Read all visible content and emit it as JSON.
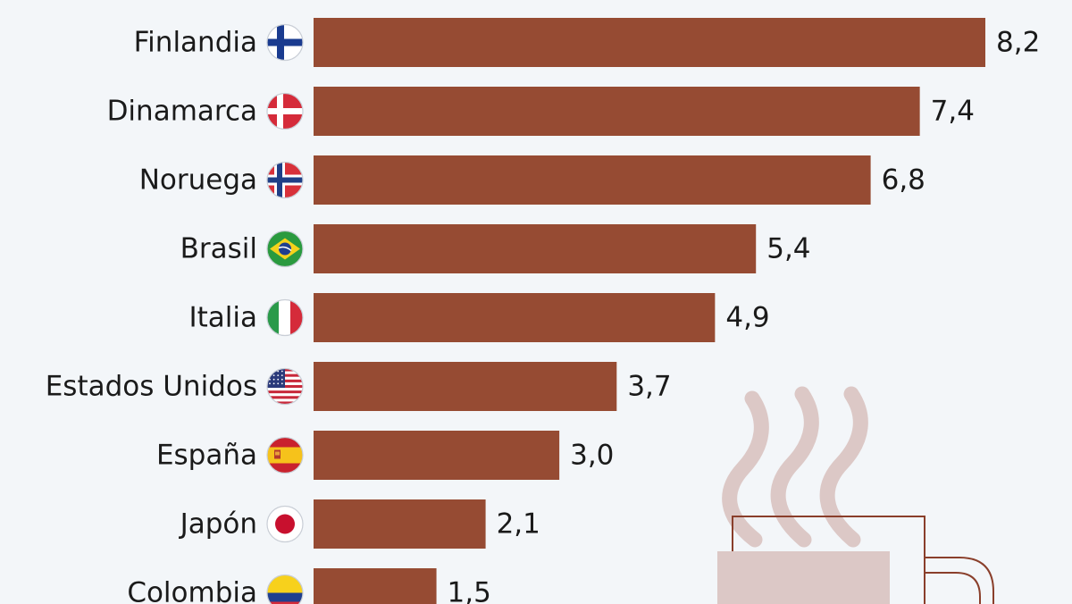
{
  "chart_data": {
    "type": "bar",
    "orientation": "horizontal",
    "title": "",
    "xlabel": "",
    "ylabel": "",
    "categories": [
      "Finlandia",
      "Dinamarca",
      "Noruega",
      "Brasil",
      "Italia",
      "Estados Unidos",
      "España",
      "Japón",
      "Colombia"
    ],
    "values": [
      8.2,
      7.4,
      6.8,
      5.4,
      4.9,
      3.7,
      3.0,
      2.1,
      1.5
    ],
    "value_labels": [
      "8,2",
      "7,4",
      "6,8",
      "5,4",
      "4,9",
      "3,7",
      "3,0",
      "2,1",
      "1,5"
    ],
    "flags": [
      "finland-flag-icon",
      "denmark-flag-icon",
      "norway-flag-icon",
      "brazil-flag-icon",
      "italy-flag-icon",
      "usa-flag-icon",
      "spain-flag-icon",
      "japan-flag-icon",
      "colombia-flag-icon"
    ],
    "xlim": [
      0,
      8.2
    ],
    "grid": false,
    "legend": "none",
    "colors": {
      "bar": "#964b33",
      "background": "#f3f6f9",
      "text": "#1a1a1a",
      "illustration": "#dcc8c6",
      "mug_outline": "#8a3f2b"
    },
    "decoration": "coffee-mug-icon"
  }
}
